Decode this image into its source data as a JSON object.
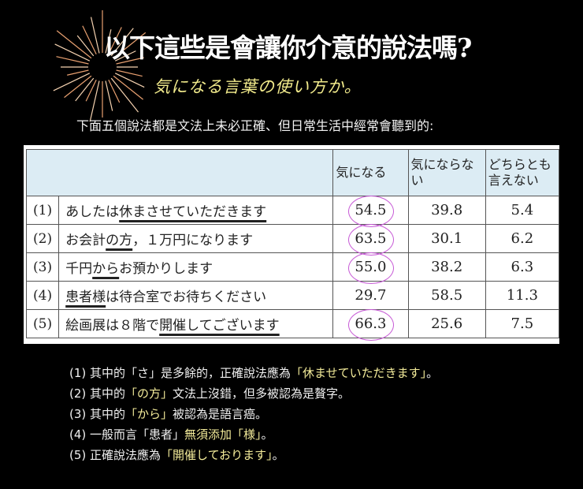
{
  "title": "以下這些是會讓你介意的說法嗎?",
  "handwritten_subtitle": "気になる言葉の使い方か。",
  "intro": "下面五個說法都是文法上未必正確、但日常生活中經常會聽到的:",
  "table": {
    "headers": [
      "",
      "気になる",
      "気にならない",
      "どちらとも言えない"
    ],
    "rows": [
      {
        "index": "(1)",
        "label": [
          {
            "text": "あしたは",
            "underline": false
          },
          {
            "text": "休まさせていただきます",
            "underline": true
          }
        ],
        "values": [
          "54.5",
          "39.8",
          "5.4"
        ],
        "circled": true
      },
      {
        "index": "(2)",
        "label": [
          {
            "text": "お会計",
            "underline": false
          },
          {
            "text": "の方",
            "underline": true
          },
          {
            "text": "，１万円になります",
            "underline": false
          }
        ],
        "values": [
          "63.5",
          "30.1",
          "6.2"
        ],
        "circled": true
      },
      {
        "index": "(3)",
        "label": [
          {
            "text": "千円",
            "underline": false
          },
          {
            "text": "から",
            "underline": true
          },
          {
            "text": "お預かりします",
            "underline": false
          }
        ],
        "values": [
          "55.0",
          "38.2",
          "6.3"
        ],
        "circled": true
      },
      {
        "index": "(4)",
        "label": [
          {
            "text": "患者様",
            "underline": true
          },
          {
            "text": "は待合室でお待ちください",
            "underline": false
          }
        ],
        "values": [
          "29.7",
          "58.5",
          "11.3"
        ],
        "circled": false
      },
      {
        "index": "(5)",
        "label": [
          {
            "text": "絵画展は８階で",
            "underline": false
          },
          {
            "text": "開催してございます",
            "underline": true
          }
        ],
        "values": [
          "66.3",
          "25.6",
          "7.5"
        ],
        "circled": true
      }
    ]
  },
  "notes": [
    [
      {
        "text": "(1) 其中的「さ」是多餘的，正確說法應為",
        "hl": false
      },
      {
        "text": "「休ませていただきます」",
        "hl": true
      },
      {
        "text": "。",
        "hl": false
      }
    ],
    [
      {
        "text": "(2) 其中的",
        "hl": false
      },
      {
        "text": "「の方」",
        "hl": true
      },
      {
        "text": "文法上沒錯，但多被認為是贅字。",
        "hl": false
      }
    ],
    [
      {
        "text": "(3) 其中的",
        "hl": false
      },
      {
        "text": "「から」",
        "hl": true
      },
      {
        "text": "被認為是語言癌。",
        "hl": false
      }
    ],
    [
      {
        "text": "(4) 一般而言「患者」",
        "hl": false
      },
      {
        "text": "無須添加「様」",
        "hl": true
      },
      {
        "text": "。",
        "hl": false
      }
    ],
    [
      {
        "text": "(5) 正確說法應為",
        "hl": false
      },
      {
        "text": "「開催しております」",
        "hl": true
      },
      {
        "text": "。",
        "hl": false
      }
    ]
  ],
  "colors": {
    "background": "#000000",
    "highlight": "#f4ec9a",
    "circle": "#c75ad6",
    "header_bg": "#dcecf4"
  }
}
